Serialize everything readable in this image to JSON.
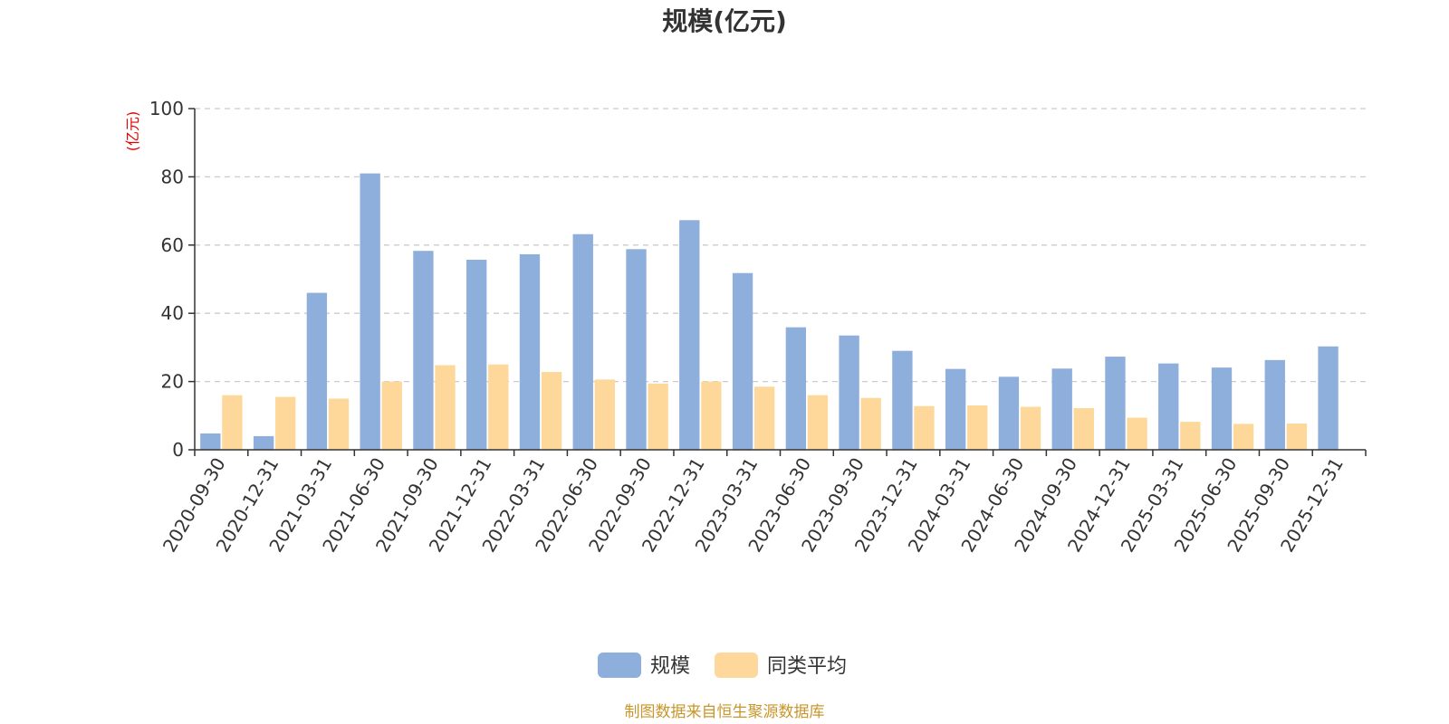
{
  "chart_data": {
    "type": "bar",
    "title": "规模(亿元)",
    "ylabel": "(亿元)",
    "ylim": [
      0,
      100
    ],
    "yticks": [
      0,
      20,
      40,
      60,
      80,
      100
    ],
    "grid": true,
    "legend_position": "bottom-center",
    "categories": [
      "2020-09-30",
      "2020-12-31",
      "2021-03-31",
      "2021-06-30",
      "2021-09-30",
      "2021-12-31",
      "2022-03-31",
      "2022-06-30",
      "2022-09-30",
      "2022-12-31",
      "2023-03-31",
      "2023-06-30",
      "2023-09-30",
      "2023-12-31",
      "2024-03-31",
      "2024-06-30",
      "2024-09-30",
      "2024-12-31",
      "2025-03-31",
      "2025-06-30",
      "2025-09-30",
      "2025-12-31"
    ],
    "series": [
      {
        "name": "规模",
        "color": "#8eaedb",
        "values": [
          4.8,
          4.0,
          46.0,
          81.0,
          58.3,
          55.7,
          57.3,
          63.2,
          58.8,
          67.3,
          51.8,
          35.9,
          33.5,
          29.0,
          23.7,
          21.4,
          23.8,
          27.3,
          25.3,
          24.1,
          26.3,
          30.3
        ]
      },
      {
        "name": "同类平均",
        "color": "#fdd89a",
        "values": [
          16.0,
          15.5,
          15.0,
          20.0,
          24.8,
          25.0,
          22.8,
          20.6,
          19.4,
          20.0,
          18.5,
          16.0,
          15.2,
          12.8,
          13.0,
          12.6,
          12.2,
          9.4,
          8.2,
          7.6,
          7.7,
          null
        ]
      }
    ],
    "source": "制图数据来自恒生聚源数据库"
  }
}
